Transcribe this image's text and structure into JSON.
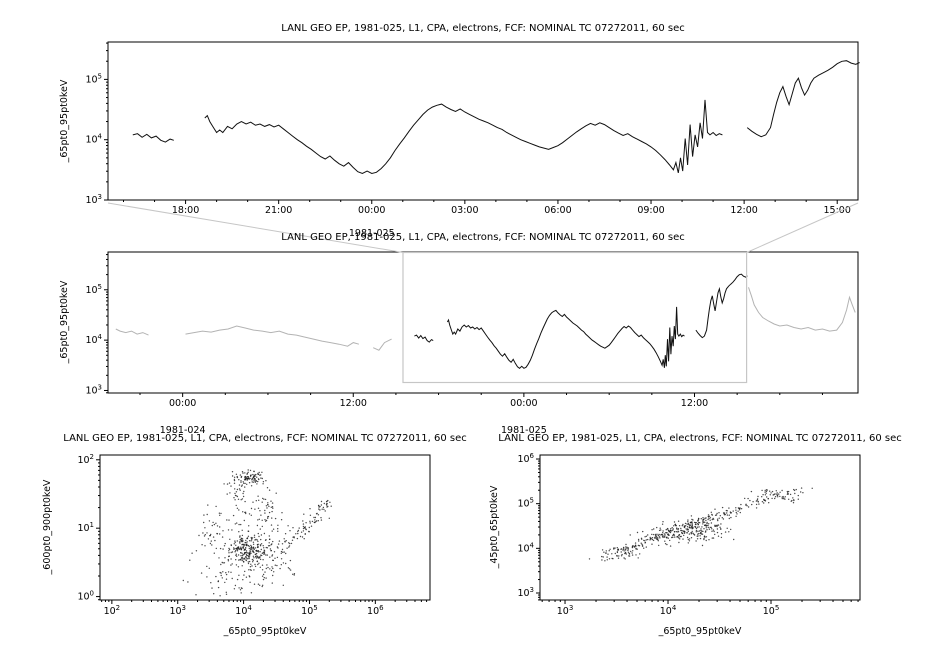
{
  "page": {
    "background": "#ffffff",
    "foreground": "#000000",
    "series_color": "#111111",
    "context_gray": "#b3b3b3",
    "box_gray": "#c6c6c6",
    "scatter_dot_color": "#1a1a1a"
  },
  "chart_data": [
    {
      "id": "top-timeseries",
      "type": "line",
      "title": "LANL GEO EP, 1981-025, L1, CPA, electrons, FCF: NOMINAL TC 07272011, 60 sec",
      "ylabel": "_65pt0_95pt0keV",
      "yscale": "log",
      "xscale": "time",
      "ylim_log10": [
        3,
        5.62
      ],
      "yticks_log10": [
        3,
        4,
        5
      ],
      "xlim_hours": [
        15.5,
        39.67
      ],
      "x_minor_step_hours": 1,
      "xticks": [
        {
          "t": 18,
          "label": "18:00"
        },
        {
          "t": 21,
          "label": "21:00"
        },
        {
          "t": 24,
          "label": "00:00",
          "date": "1981-025"
        },
        {
          "t": 27,
          "label": "03:00"
        },
        {
          "t": 30,
          "label": "06:00"
        },
        {
          "t": 33,
          "label": "09:00"
        },
        {
          "t": 36,
          "label": "12:00"
        },
        {
          "t": 39,
          "label": "15:00"
        }
      ],
      "segments_log10": [
        [
          [
            16.3,
            4.08
          ],
          [
            16.45,
            4.1
          ],
          [
            16.6,
            4.04
          ],
          [
            16.75,
            4.09
          ],
          [
            16.9,
            4.03
          ],
          [
            17.05,
            4.06
          ],
          [
            17.2,
            3.99
          ],
          [
            17.35,
            3.96
          ],
          [
            17.5,
            4.01
          ],
          [
            17.62,
            3.99
          ]
        ],
        [
          [
            18.62,
            4.36
          ],
          [
            18.7,
            4.4
          ],
          [
            18.78,
            4.3
          ],
          [
            18.9,
            4.2
          ],
          [
            19.0,
            4.12
          ],
          [
            19.1,
            4.16
          ],
          [
            19.2,
            4.12
          ],
          [
            19.35,
            4.22
          ],
          [
            19.5,
            4.18
          ],
          [
            19.65,
            4.26
          ],
          [
            19.8,
            4.3
          ],
          [
            19.95,
            4.26
          ],
          [
            20.1,
            4.29
          ],
          [
            20.25,
            4.24
          ],
          [
            20.4,
            4.26
          ],
          [
            20.55,
            4.22
          ],
          [
            20.7,
            4.25
          ],
          [
            20.85,
            4.21
          ],
          [
            21.0,
            4.24
          ],
          [
            21.15,
            4.18
          ],
          [
            21.3,
            4.12
          ],
          [
            21.45,
            4.06
          ],
          [
            21.6,
            4.0
          ],
          [
            21.75,
            3.95
          ],
          [
            21.9,
            3.89
          ],
          [
            22.05,
            3.84
          ],
          [
            22.2,
            3.78
          ],
          [
            22.35,
            3.72
          ],
          [
            22.5,
            3.68
          ],
          [
            22.65,
            3.73
          ],
          [
            22.8,
            3.66
          ],
          [
            22.95,
            3.6
          ],
          [
            23.1,
            3.56
          ],
          [
            23.25,
            3.62
          ],
          [
            23.4,
            3.54
          ],
          [
            23.55,
            3.47
          ],
          [
            23.7,
            3.44
          ],
          [
            23.85,
            3.48
          ],
          [
            24.0,
            3.44
          ],
          [
            24.15,
            3.46
          ],
          [
            24.3,
            3.52
          ],
          [
            24.45,
            3.6
          ],
          [
            24.6,
            3.7
          ],
          [
            24.75,
            3.82
          ],
          [
            24.9,
            3.93
          ],
          [
            25.05,
            4.03
          ],
          [
            25.2,
            4.14
          ],
          [
            25.35,
            4.24
          ],
          [
            25.5,
            4.33
          ],
          [
            25.65,
            4.42
          ],
          [
            25.8,
            4.49
          ],
          [
            25.95,
            4.54
          ],
          [
            26.1,
            4.57
          ],
          [
            26.25,
            4.59
          ],
          [
            26.4,
            4.54
          ],
          [
            26.55,
            4.5
          ],
          [
            26.7,
            4.47
          ],
          [
            26.85,
            4.51
          ],
          [
            27.0,
            4.46
          ],
          [
            27.15,
            4.42
          ],
          [
            27.3,
            4.38
          ],
          [
            27.45,
            4.34
          ],
          [
            27.6,
            4.31
          ],
          [
            27.75,
            4.28
          ],
          [
            27.9,
            4.24
          ],
          [
            28.05,
            4.2
          ],
          [
            28.2,
            4.17
          ],
          [
            28.35,
            4.12
          ],
          [
            28.5,
            4.08
          ],
          [
            28.65,
            4.04
          ],
          [
            28.8,
            4.0
          ],
          [
            28.95,
            3.97
          ],
          [
            29.1,
            3.94
          ],
          [
            29.25,
            3.91
          ],
          [
            29.4,
            3.88
          ],
          [
            29.55,
            3.86
          ],
          [
            29.7,
            3.84
          ],
          [
            29.85,
            3.87
          ],
          [
            30.0,
            3.9
          ],
          [
            30.15,
            3.95
          ],
          [
            30.3,
            4.01
          ],
          [
            30.45,
            4.07
          ],
          [
            30.6,
            4.13
          ],
          [
            30.75,
            4.18
          ],
          [
            30.9,
            4.23
          ],
          [
            31.05,
            4.27
          ],
          [
            31.2,
            4.24
          ],
          [
            31.35,
            4.28
          ],
          [
            31.5,
            4.25
          ],
          [
            31.65,
            4.2
          ],
          [
            31.8,
            4.15
          ],
          [
            31.95,
            4.11
          ],
          [
            32.1,
            4.07
          ],
          [
            32.25,
            4.1
          ],
          [
            32.4,
            4.05
          ],
          [
            32.55,
            4.01
          ],
          [
            32.7,
            3.97
          ],
          [
            32.85,
            3.93
          ],
          [
            33.0,
            3.88
          ],
          [
            33.15,
            3.82
          ],
          [
            33.3,
            3.75
          ],
          [
            33.45,
            3.67
          ],
          [
            33.6,
            3.58
          ],
          [
            33.72,
            3.5
          ],
          [
            33.8,
            3.62
          ],
          [
            33.88,
            3.45
          ],
          [
            33.95,
            3.7
          ],
          [
            34.02,
            3.48
          ],
          [
            34.1,
            4.02
          ],
          [
            34.18,
            3.58
          ],
          [
            34.26,
            4.25
          ],
          [
            34.34,
            3.72
          ],
          [
            34.42,
            4.08
          ],
          [
            34.5,
            3.88
          ],
          [
            34.58,
            4.28
          ],
          [
            34.66,
            4.02
          ],
          [
            34.74,
            4.66
          ],
          [
            34.82,
            4.12
          ],
          [
            34.9,
            4.08
          ],
          [
            35.0,
            4.12
          ],
          [
            35.1,
            4.07
          ],
          [
            35.2,
            4.1
          ],
          [
            35.3,
            4.08
          ]
        ],
        [
          [
            36.1,
            4.2
          ],
          [
            36.25,
            4.14
          ],
          [
            36.4,
            4.09
          ],
          [
            36.55,
            4.05
          ],
          [
            36.7,
            4.08
          ],
          [
            36.85,
            4.2
          ],
          [
            36.95,
            4.42
          ],
          [
            37.05,
            4.62
          ],
          [
            37.15,
            4.78
          ],
          [
            37.25,
            4.88
          ],
          [
            37.35,
            4.72
          ],
          [
            37.45,
            4.58
          ],
          [
            37.55,
            4.76
          ],
          [
            37.65,
            4.94
          ],
          [
            37.75,
            5.02
          ],
          [
            37.85,
            4.86
          ],
          [
            37.95,
            4.74
          ],
          [
            38.05,
            4.82
          ],
          [
            38.15,
            4.94
          ],
          [
            38.25,
            5.02
          ],
          [
            38.4,
            5.07
          ],
          [
            38.55,
            5.11
          ],
          [
            38.7,
            5.15
          ],
          [
            38.85,
            5.2
          ],
          [
            39.0,
            5.26
          ],
          [
            39.15,
            5.3
          ],
          [
            39.3,
            5.31
          ],
          [
            39.45,
            5.27
          ],
          [
            39.6,
            5.25
          ],
          [
            39.72,
            5.28
          ]
        ]
      ]
    },
    {
      "id": "context-timeseries",
      "type": "line",
      "title": "LANL GEO EP, 1981-025, L1, CPA, electrons, FCF: NOMINAL TC 07272011, 60 sec",
      "ylabel": "_65pt0_95pt0keV",
      "yscale": "log",
      "xscale": "time",
      "ylim_log10": [
        2.95,
        5.75
      ],
      "yticks_log10": [
        3,
        4,
        5
      ],
      "xlim_hours": [
        -5.25,
        47.5
      ],
      "x_minor_step_hours": 3,
      "xticks": [
        {
          "t": 0,
          "label": "00:00",
          "date": "1981-024"
        },
        {
          "t": 12,
          "label": "12:00"
        },
        {
          "t": 24,
          "label": "00:00",
          "date": "1981-025"
        },
        {
          "t": 36,
          "label": "12:00"
        }
      ],
      "zoom_box_xlim_hours": [
        15.5,
        39.67
      ],
      "highlight_note": "segment inside zoom box equals top-timeseries data (black); rest is gray context",
      "pre_segments_log10": [
        [
          [
            -4.7,
            4.22
          ],
          [
            -4.4,
            4.18
          ],
          [
            -4.0,
            4.15
          ],
          [
            -3.6,
            4.18
          ],
          [
            -3.2,
            4.12
          ],
          [
            -2.8,
            4.15
          ],
          [
            -2.4,
            4.1
          ]
        ],
        [
          [
            0.2,
            4.12
          ],
          [
            0.8,
            4.15
          ],
          [
            1.4,
            4.18
          ],
          [
            2.0,
            4.16
          ],
          [
            2.6,
            4.2
          ],
          [
            3.2,
            4.22
          ],
          [
            3.8,
            4.28
          ],
          [
            4.4,
            4.24
          ],
          [
            5.0,
            4.2
          ],
          [
            5.6,
            4.18
          ],
          [
            6.2,
            4.15
          ],
          [
            6.8,
            4.18
          ],
          [
            7.4,
            4.12
          ],
          [
            8.0,
            4.1
          ],
          [
            8.6,
            4.06
          ],
          [
            9.2,
            4.02
          ],
          [
            9.8,
            3.98
          ],
          [
            10.4,
            3.95
          ],
          [
            11.0,
            3.92
          ],
          [
            11.6,
            3.88
          ],
          [
            12.0,
            3.95
          ],
          [
            12.4,
            3.92
          ]
        ],
        [
          [
            13.4,
            3.85
          ],
          [
            13.8,
            3.8
          ],
          [
            14.2,
            3.95
          ],
          [
            14.7,
            4.02
          ]
        ]
      ],
      "post_segments_log10": [
        [
          [
            39.8,
            5.05
          ],
          [
            40.0,
            4.88
          ],
          [
            40.2,
            4.7
          ],
          [
            40.5,
            4.55
          ],
          [
            40.8,
            4.45
          ],
          [
            41.2,
            4.38
          ],
          [
            41.6,
            4.32
          ],
          [
            42.0,
            4.28
          ],
          [
            42.5,
            4.3
          ],
          [
            43.0,
            4.25
          ],
          [
            43.5,
            4.22
          ],
          [
            44.0,
            4.25
          ],
          [
            44.5,
            4.2
          ],
          [
            45.0,
            4.22
          ],
          [
            45.5,
            4.18
          ],
          [
            46.0,
            4.2
          ],
          [
            46.4,
            4.35
          ],
          [
            46.7,
            4.6
          ],
          [
            46.9,
            4.85
          ],
          [
            47.1,
            4.7
          ],
          [
            47.3,
            4.55
          ]
        ]
      ]
    },
    {
      "id": "scatter-600-900",
      "type": "scatter",
      "title": "LANL GEO EP, 1981-025, L1, CPA, electrons, FCF: NOMINAL TC 07272011, 60 sec",
      "xlabel": "_65pt0_95pt0keV",
      "ylabel": "_600pt0_900pt0keV",
      "xscale": "log",
      "yscale": "log",
      "xlim_log10": [
        1.82,
        6.83
      ],
      "ylim_log10": [
        -0.05,
        2.07
      ],
      "xticks_log10": [
        2,
        3,
        4,
        5,
        6
      ],
      "yticks_log10": [
        0,
        1,
        2
      ],
      "clusters_log10": [
        {
          "cx": 4.05,
          "cy": 0.7,
          "sx": 0.28,
          "sy": 0.25,
          "n": 200
        },
        {
          "cx": 4.08,
          "cy": 0.66,
          "sx": 0.11,
          "sy": 0.1,
          "n": 140
        },
        {
          "cx": 4.1,
          "cy": 1.74,
          "sx": 0.13,
          "sy": 0.06,
          "n": 90
        },
        {
          "cx": 3.93,
          "cy": 1.52,
          "sx": 0.1,
          "sy": 0.14,
          "n": 35
        },
        {
          "cx": 4.33,
          "cy": 1.28,
          "sx": 0.1,
          "sy": 0.16,
          "n": 45
        },
        {
          "x1": 4.85,
          "y1": 0.92,
          "x2": 5.32,
          "y2": 1.42,
          "s": 0.05,
          "n": 55
        },
        {
          "x1": 4.55,
          "y1": 0.75,
          "x2": 4.95,
          "y2": 0.95,
          "s": 0.07,
          "n": 30
        },
        {
          "cx": 3.92,
          "cy": 0.22,
          "sx": 0.35,
          "sy": 0.18,
          "n": 45
        },
        {
          "cx": 3.6,
          "cy": 0.85,
          "sx": 0.18,
          "sy": 0.28,
          "n": 40
        },
        {
          "cx": 4.45,
          "cy": 0.55,
          "sx": 0.18,
          "sy": 0.18,
          "n": 35
        }
      ]
    },
    {
      "id": "scatter-45-65",
      "type": "scatter",
      "title": "LANL GEO EP, 1981-025, L1, CPA, electrons, FCF: NOMINAL TC 07272011, 60 sec",
      "xlabel": "_65pt0_95pt0keV",
      "ylabel": "_45pt0_65pt0keV",
      "xscale": "log",
      "yscale": "log",
      "xlim_log10": [
        2.757,
        5.864
      ],
      "ylim_log10": [
        2.843,
        6.09
      ],
      "xticks_log10": [
        3,
        4,
        5
      ],
      "yticks_log10": [
        3,
        4,
        5,
        6
      ],
      "clusters_log10": [
        {
          "x1": 3.35,
          "y1": 3.82,
          "x2": 4.75,
          "y2": 4.98,
          "s": 0.045,
          "n": 160
        },
        {
          "x1": 3.55,
          "y1": 3.95,
          "x2": 4.65,
          "y2": 4.82,
          "s": 0.06,
          "n": 110
        },
        {
          "cx": 4.15,
          "cy": 4.32,
          "sx": 0.16,
          "sy": 0.13,
          "n": 110
        },
        {
          "cx": 4.35,
          "cy": 4.45,
          "sx": 0.12,
          "sy": 0.1,
          "n": 70
        },
        {
          "x1": 4.75,
          "y1": 4.95,
          "x2": 5.3,
          "y2": 5.35,
          "s": 0.05,
          "n": 50
        },
        {
          "x1": 4.9,
          "y1": 5.3,
          "x2": 5.25,
          "y2": 5.05,
          "s": 0.04,
          "n": 35
        },
        {
          "x1": 3.3,
          "y1": 3.75,
          "x2": 3.7,
          "y2": 3.9,
          "s": 0.05,
          "n": 25
        }
      ]
    }
  ]
}
